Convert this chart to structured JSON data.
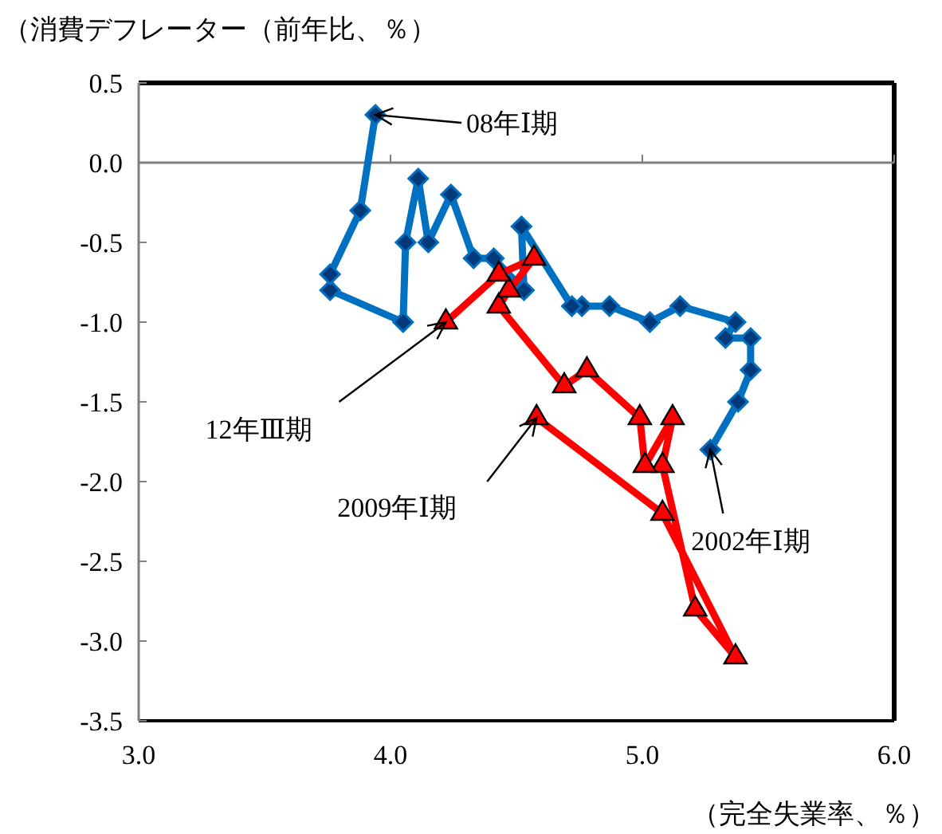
{
  "chart_data": {
    "type": "line",
    "ylabel": "（消費デフレーター（前年比、％）",
    "xlabel": "（完全失業率、％）",
    "xlim": [
      3.0,
      6.0
    ],
    "xticks": [
      {
        "value": 3,
        "label": "3.0"
      },
      {
        "value": 4,
        "label": "4.0"
      },
      {
        "value": 5,
        "label": "5.0"
      },
      {
        "value": 6,
        "label": "6.0"
      }
    ],
    "ylim": [
      -3.5,
      0.5
    ],
    "yticks": [
      {
        "value": 0.5,
        "label": "0.5"
      },
      {
        "value": 0,
        "label": "0.0"
      },
      {
        "value": -0.5,
        "label": "-0.5"
      },
      {
        "value": -1,
        "label": "-1.0"
      },
      {
        "value": -1.5,
        "label": "-1.5"
      },
      {
        "value": -2,
        "label": "-2.0"
      },
      {
        "value": -2.5,
        "label": "-2.5"
      },
      {
        "value": -3,
        "label": "-3.0"
      },
      {
        "value": -3.5,
        "label": "-3.5"
      }
    ],
    "grid": false,
    "line_style": "solid",
    "ref_lines": [
      {
        "axis": "y",
        "value": 0,
        "color": "#808080"
      }
    ],
    "series": [
      {
        "color": "#0070c0",
        "marker": "diamond",
        "x": [
          5.27,
          5.38,
          5.43,
          5.43,
          5.33,
          5.37,
          5.15,
          5.03,
          4.87,
          4.76,
          4.72,
          4.52,
          4.53,
          4.41,
          4.33,
          4.24,
          4.15,
          4.11,
          4.06,
          4.05,
          3.76,
          3.76,
          3.88,
          3.94
        ],
        "values": [
          -1.8,
          -1.5,
          -1.3,
          -1.1,
          -1.1,
          -1.0,
          -0.9,
          -1.0,
          -0.9,
          -0.9,
          -0.9,
          -0.4,
          -0.8,
          -0.6,
          -0.6,
          -0.2,
          -0.5,
          -0.1,
          -0.5,
          -1.0,
          -0.8,
          -0.7,
          -0.3,
          0.3
        ]
      },
      {
        "color": "#ff0000",
        "marker": "triangle",
        "x": [
          4.58,
          5.08,
          5.37,
          5.21,
          5.08,
          5.12,
          5.01,
          4.99,
          4.78,
          4.69,
          4.43,
          4.47,
          4.57,
          4.43,
          4.22
        ],
        "values": [
          -1.6,
          -2.2,
          -3.1,
          -2.8,
          -1.9,
          -1.6,
          -1.9,
          -1.6,
          -1.3,
          -1.4,
          -0.9,
          -0.8,
          -0.6,
          -0.7,
          -1.0
        ]
      }
    ],
    "annotations": [
      {
        "text": "08年Ⅰ期",
        "x": 3.94,
        "y": 0.3
      },
      {
        "text": "12年Ⅲ期",
        "x": 4.22,
        "y": -1.0
      },
      {
        "text": "2009年Ⅰ期",
        "x": 4.58,
        "y": -1.6
      },
      {
        "text": "2002年Ⅰ期",
        "x": 5.27,
        "y": -1.8
      }
    ]
  }
}
